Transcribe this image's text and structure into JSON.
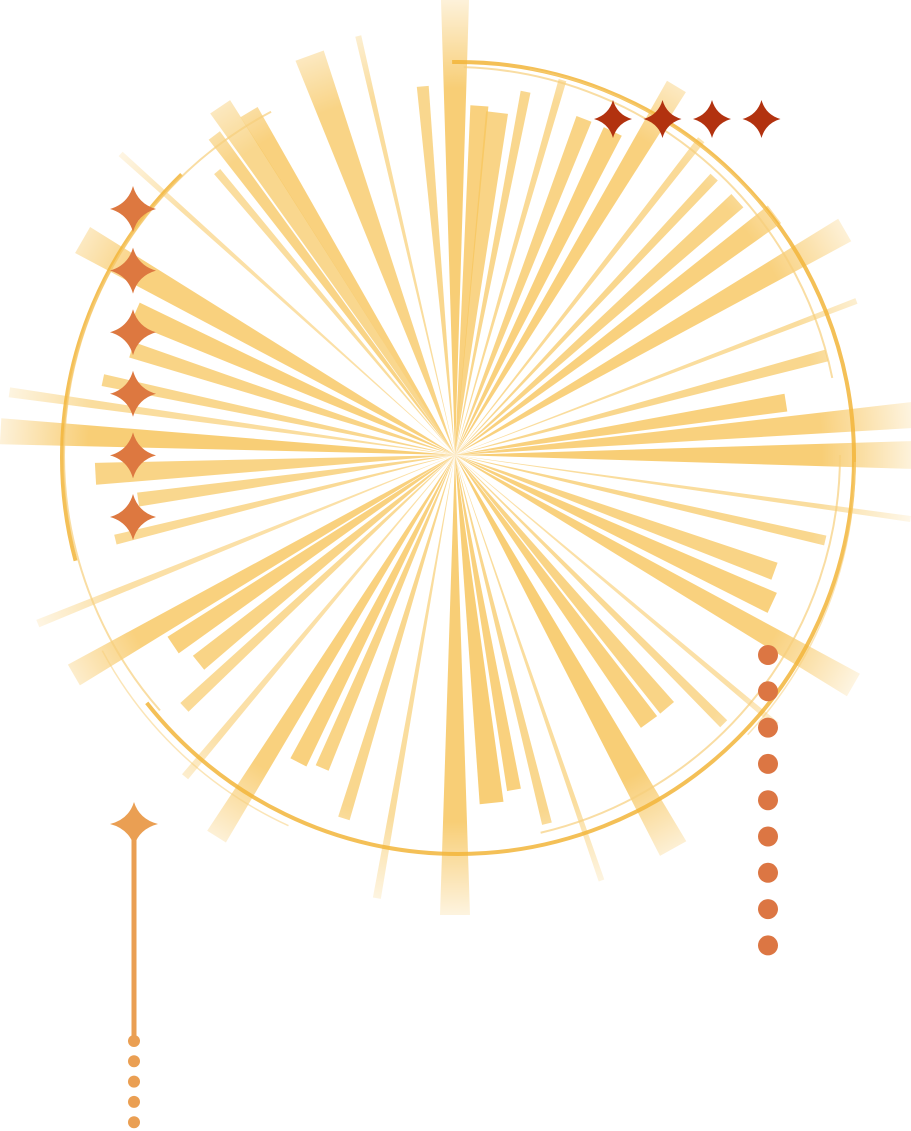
{
  "colors": {
    "background": "#ffffff",
    "rays": "#f7c65e",
    "ring": "#f2b53a",
    "ring_inner": "#f7cf7c",
    "star_orange": "#dd7840",
    "star_red": "#b2320f",
    "dot_orange": "#dc7643",
    "pin_orange": "#ea9f53"
  },
  "decorations": {
    "star_column_left_count": 6,
    "star_row_top_right_count": 4,
    "dot_column_right_count": 9,
    "pin_tail_dot_count": 5
  }
}
